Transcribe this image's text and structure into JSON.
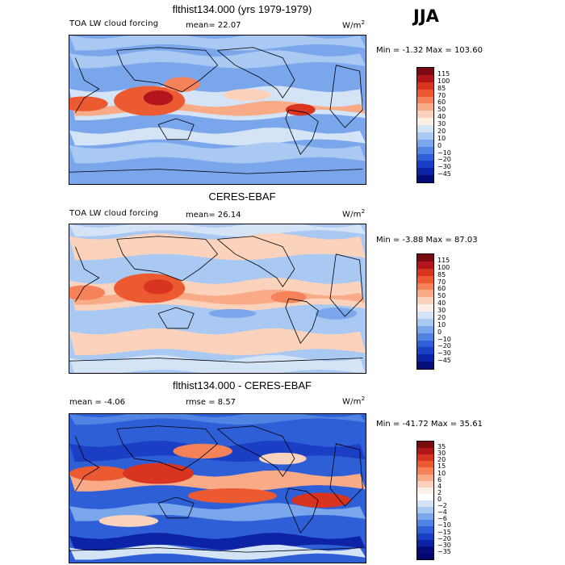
{
  "season": "JJA",
  "units_base": "W/m",
  "units_exp": "2",
  "panels": [
    {
      "title": "flthist134.000 (yrs 1979-1979)",
      "field_label": "TOA LW cloud forcing",
      "stat1": "mean=  22.07",
      "stat2": "",
      "minmax": "Min =   -1.32 Max = 103.60",
      "colorbar": {
        "labels": [
          "115",
          "100",
          "85",
          "70",
          "60",
          "50",
          "40",
          "30",
          "20",
          "10",
          "0",
          "−10",
          "−20",
          "−30",
          "−45"
        ],
        "colors": [
          "#7a0b10",
          "#b2161c",
          "#d8341f",
          "#ec5a32",
          "#f6825a",
          "#f9ab88",
          "#fbd3bd",
          "#fbefe6",
          "#d4e3f6",
          "#a9c8f2",
          "#7aa6ec",
          "#4f84e3",
          "#2f5fd6",
          "#1b3fc4",
          "#0c23a6",
          "#050d7a"
        ]
      }
    },
    {
      "title": "CERES-EBAF",
      "field_label": "TOA LW cloud forcing",
      "stat1": "mean=  26.14",
      "stat2": "",
      "minmax": "Min =   -3.88 Max =  87.03",
      "colorbar": {
        "labels": [
          "115",
          "100",
          "85",
          "70",
          "60",
          "50",
          "40",
          "30",
          "20",
          "10",
          "0",
          "−10",
          "−20",
          "−30",
          "−45"
        ],
        "colors": [
          "#7a0b10",
          "#b2161c",
          "#d8341f",
          "#ec5a32",
          "#f6825a",
          "#f9ab88",
          "#fbd3bd",
          "#fbefe6",
          "#d4e3f6",
          "#a9c8f2",
          "#7aa6ec",
          "#4f84e3",
          "#2f5fd6",
          "#1b3fc4",
          "#0c23a6",
          "#050d7a"
        ]
      }
    },
    {
      "title": "flthist134.000 - CERES-EBAF",
      "field_label": "",
      "stat1": "mean =   -4.06",
      "stat2": "rmse =   8.57",
      "minmax": "Min = -41.72 Max =  35.61",
      "colorbar": {
        "labels": [
          "35",
          "30",
          "20",
          "15",
          "10",
          "6",
          "4",
          "2",
          "0",
          "−2",
          "−4",
          "−6",
          "−10",
          "−15",
          "−20",
          "−30",
          "−35"
        ],
        "colors": [
          "#7a0b10",
          "#b2161c",
          "#d8341f",
          "#ec5a32",
          "#f6825a",
          "#f9ab88",
          "#fbd3bd",
          "#fbefe6",
          "#ffffff",
          "#d4e3f6",
          "#a9c8f2",
          "#7aa6ec",
          "#4f84e3",
          "#2f5fd6",
          "#1b3fc4",
          "#0c23a6",
          "#050d7a",
          "#03086a"
        ]
      }
    }
  ],
  "chart_data": [
    {
      "type": "heatmap",
      "title": "flthist134.000 (yrs 1979-1979)",
      "variable": "TOA LW cloud forcing",
      "units": "W/m2",
      "season": "JJA",
      "mean": 22.07,
      "min": -1.32,
      "max": 103.6,
      "contour_levels": [
        -45,
        -30,
        -20,
        -10,
        0,
        10,
        20,
        30,
        40,
        50,
        60,
        70,
        85,
        100,
        115
      ]
    },
    {
      "type": "heatmap",
      "title": "CERES-EBAF",
      "variable": "TOA LW cloud forcing",
      "units": "W/m2",
      "season": "JJA",
      "mean": 26.14,
      "min": -3.88,
      "max": 87.03,
      "contour_levels": [
        -45,
        -30,
        -20,
        -10,
        0,
        10,
        20,
        30,
        40,
        50,
        60,
        70,
        85,
        100,
        115
      ]
    },
    {
      "type": "heatmap",
      "title": "flthist134.000 - CERES-EBAF",
      "units": "W/m2",
      "season": "JJA",
      "mean": -4.06,
      "rmse": 8.57,
      "min": -41.72,
      "max": 35.61,
      "contour_levels": [
        -35,
        -30,
        -20,
        -15,
        -10,
        -6,
        -4,
        -2,
        0,
        2,
        4,
        6,
        10,
        15,
        20,
        30,
        35
      ]
    }
  ]
}
